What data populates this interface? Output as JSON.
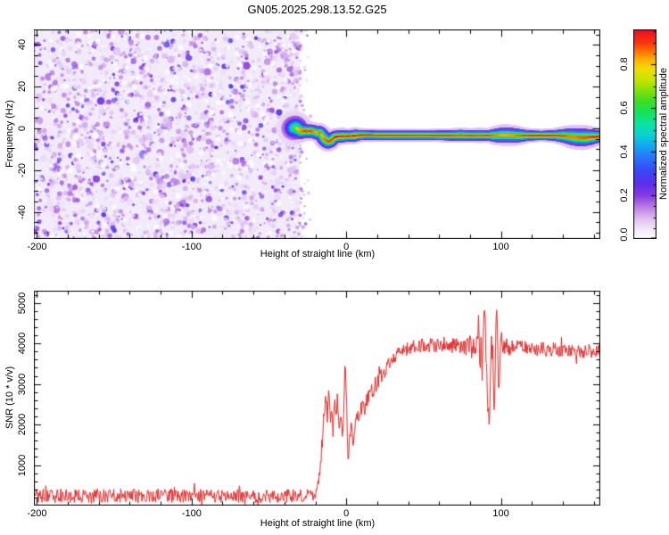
{
  "figure_title": "GN05.2025.298.13.52.G25",
  "chart_data": [
    {
      "type": "heatmap",
      "title": "GN05.2025.298.13.52.G25",
      "xlabel": "Height of straight line (km)",
      "ylabel": "Frequency (Hz)",
      "xlim": [
        -202,
        164.3
      ],
      "ylim": [
        -53,
        47.4
      ],
      "xticks": [
        -200,
        -100,
        0,
        100
      ],
      "yticks": [
        -40,
        -20,
        0,
        20,
        40
      ],
      "x_minor_step": 20,
      "y_minor_step": 5,
      "grid": false,
      "colorbar": {
        "label": "Normalized spectral amplitude",
        "tick_labels": [
          "0.0",
          "0.2",
          "0.4",
          "0.6",
          "0.8"
        ],
        "tick_values": [
          0.0,
          0.2,
          0.4,
          0.6,
          0.8
        ],
        "minor_step": 0.05,
        "range": [
          0,
          0.96
        ]
      },
      "colormap_stops": [
        [
          0.0,
          255,
          255,
          255
        ],
        [
          0.04,
          244,
          236,
          250
        ],
        [
          0.09,
          225,
          196,
          242
        ],
        [
          0.15,
          186,
          122,
          228
        ],
        [
          0.2,
          135,
          60,
          225
        ],
        [
          0.26,
          90,
          45,
          235
        ],
        [
          0.32,
          55,
          75,
          245
        ],
        [
          0.38,
          40,
          120,
          250
        ],
        [
          0.43,
          20,
          168,
          240
        ],
        [
          0.48,
          8,
          212,
          208
        ],
        [
          0.53,
          10,
          228,
          160
        ],
        [
          0.58,
          20,
          226,
          92
        ],
        [
          0.63,
          60,
          220,
          40
        ],
        [
          0.68,
          128,
          224,
          12
        ],
        [
          0.73,
          198,
          230,
          0
        ],
        [
          0.78,
          240,
          220,
          0
        ],
        [
          0.82,
          255,
          180,
          0
        ],
        [
          0.86,
          255,
          118,
          0
        ],
        [
          0.9,
          248,
          55,
          12
        ],
        [
          0.95,
          238,
          18,
          32
        ],
        [
          1.0,
          242,
          16,
          92
        ]
      ],
      "noise_region": {
        "x_range": [
          -202,
          -30
        ],
        "amplitude_range": [
          0.04,
          0.33
        ],
        "background_tint": "#f2ebfa",
        "dot_count": 2400
      },
      "ridge": [
        [
          -34.5,
          0,
          0.5,
          8
        ],
        [
          -33,
          0.5,
          0.65,
          8
        ],
        [
          -31,
          -0.5,
          0.8,
          6
        ],
        [
          -29,
          -1.5,
          0.85,
          5
        ],
        [
          -27,
          -1.2,
          0.9,
          4.5
        ],
        [
          -25,
          -1.4,
          0.88,
          4.5
        ],
        [
          -23,
          -1.3,
          0.9,
          4.5
        ],
        [
          -21,
          -1.6,
          0.85,
          4.5
        ],
        [
          -19,
          -2.2,
          0.8,
          4.5
        ],
        [
          -17,
          -2.0,
          0.88,
          4.5
        ],
        [
          -15.5,
          -3.5,
          0.8,
          5
        ],
        [
          -14,
          -5.2,
          0.85,
          5
        ],
        [
          -12,
          -6.2,
          0.9,
          5
        ],
        [
          -10,
          -6.0,
          0.88,
          4.5
        ],
        [
          -8.5,
          -4.8,
          0.9,
          4.5
        ],
        [
          -7,
          -4.0,
          0.92,
          4
        ],
        [
          -5,
          -3.9,
          0.95,
          4
        ],
        [
          -2,
          -3.8,
          0.9,
          4
        ],
        [
          0,
          -3.8,
          0.92,
          3.8
        ],
        [
          3,
          -3.7,
          0.9,
          3.6
        ],
        [
          5.5,
          -3.5,
          0.95,
          4
        ],
        [
          8,
          -3.3,
          0.9,
          3.4
        ],
        [
          12,
          -3.2,
          0.95,
          3.2
        ],
        [
          20,
          -3.3,
          0.95,
          3
        ],
        [
          35,
          -3.3,
          0.95,
          3
        ],
        [
          55,
          -3.3,
          0.93,
          3
        ],
        [
          68,
          -3.4,
          0.9,
          3.4
        ],
        [
          74,
          -3.3,
          0.88,
          3.6
        ],
        [
          80,
          -3.4,
          0.9,
          3.4
        ],
        [
          86,
          -3.4,
          0.88,
          3.6
        ],
        [
          92,
          -3.4,
          0.9,
          3.4
        ],
        [
          97,
          -3.4,
          0.85,
          4.6
        ],
        [
          102,
          -3.2,
          0.82,
          5.2
        ],
        [
          108,
          -3.4,
          0.84,
          5
        ],
        [
          113,
          -3.5,
          0.88,
          4.2
        ],
        [
          118,
          -3.4,
          0.92,
          3.4
        ],
        [
          126,
          -3.4,
          0.95,
          3
        ],
        [
          134,
          -3.4,
          0.92,
          3.4
        ],
        [
          141,
          -3.6,
          0.88,
          4.6
        ],
        [
          147,
          -4.1,
          0.85,
          5.8
        ],
        [
          153,
          -4.4,
          0.88,
          6
        ],
        [
          158,
          -4.2,
          0.9,
          5.2
        ],
        [
          162,
          -4,
          0.93,
          4.2
        ],
        [
          164.3,
          -3.9,
          0.95,
          3.8
        ]
      ]
    },
    {
      "type": "line",
      "xlabel": "Height of straight line (km)",
      "ylabel": "SNR (10 * v/v)",
      "xlim": [
        -202,
        164.3
      ],
      "ylim": [
        0,
        5302
      ],
      "xticks": [
        -200,
        -100,
        0,
        100
      ],
      "yticks": [
        1000,
        2000,
        3000,
        4000,
        5000
      ],
      "x_minor_step": 20,
      "y_minor_step": 200,
      "grid": false,
      "series": [
        {
          "name": "SNR",
          "color": "#e32b2b",
          "keypoints": [
            [
              -202,
              240,
              175
            ],
            [
              -150,
              240,
              175
            ],
            [
              -100,
              245,
              175
            ],
            [
              -60,
              235,
              170
            ],
            [
              -30,
              235,
              165
            ],
            [
              -21,
              240,
              150
            ],
            [
              -19,
              330,
              130
            ],
            [
              -17.5,
              700,
              180
            ],
            [
              -16,
              1400,
              250
            ],
            [
              -14.5,
              2150,
              260
            ],
            [
              -13.2,
              2650,
              250
            ],
            [
              -12.2,
              2250,
              220
            ],
            [
              -11.2,
              2950,
              200
            ],
            [
              -10.4,
              1950,
              180
            ],
            [
              -9.6,
              2500,
              200
            ],
            [
              -8.6,
              1750,
              170
            ],
            [
              -7.6,
              2600,
              190
            ],
            [
              -6.6,
              2250,
              170
            ],
            [
              -5.6,
              2700,
              170
            ],
            [
              -4.6,
              1850,
              160
            ],
            [
              -3.6,
              2300,
              160
            ],
            [
              -2.6,
              1700,
              140
            ],
            [
              -1.6,
              2150,
              160
            ],
            [
              -0.8,
              3600,
              100
            ],
            [
              0.3,
              2400,
              180
            ],
            [
              1.1,
              1050,
              120
            ],
            [
              2.2,
              1550,
              170
            ],
            [
              3.2,
              2050,
              170
            ],
            [
              4.2,
              1550,
              150
            ],
            [
              5.4,
              1850,
              170
            ],
            [
              6.6,
              2350,
              200
            ],
            [
              8,
              2150,
              190
            ],
            [
              10,
              2450,
              220
            ],
            [
              12,
              2400,
              220
            ],
            [
              14,
              2650,
              220
            ],
            [
              16,
              2850,
              220
            ],
            [
              18,
              2800,
              210
            ],
            [
              20,
              3050,
              210
            ],
            [
              23,
              3200,
              200
            ],
            [
              26,
              3400,
              190
            ],
            [
              30,
              3550,
              180
            ],
            [
              34,
              3750,
              170
            ],
            [
              40,
              3870,
              180
            ],
            [
              46,
              3930,
              190
            ],
            [
              54,
              3980,
              190
            ],
            [
              62,
              3990,
              190
            ],
            [
              70,
              3940,
              190
            ],
            [
              76,
              3900,
              200
            ],
            [
              80,
              3960,
              260
            ],
            [
              83,
              3880,
              380
            ],
            [
              85.5,
              4250,
              480
            ],
            [
              87.5,
              3480,
              560
            ],
            [
              89.5,
              5050,
              320
            ],
            [
              91,
              3050,
              480
            ],
            [
              92.6,
              1850,
              250
            ],
            [
              94.2,
              4550,
              420
            ],
            [
              95.8,
              2450,
              420
            ],
            [
              97.2,
              5100,
              280
            ],
            [
              98.6,
              2800,
              380
            ],
            [
              100,
              4050,
              320
            ],
            [
              102,
              3920,
              240
            ],
            [
              105,
              3890,
              200
            ],
            [
              112,
              3920,
              190
            ],
            [
              122,
              3880,
              180
            ],
            [
              132,
              3850,
              180
            ],
            [
              142,
              3830,
              180
            ],
            [
              152,
              3810,
              180
            ],
            [
              160,
              3800,
              185
            ],
            [
              164.3,
              3780,
              185
            ]
          ]
        }
      ]
    }
  ]
}
